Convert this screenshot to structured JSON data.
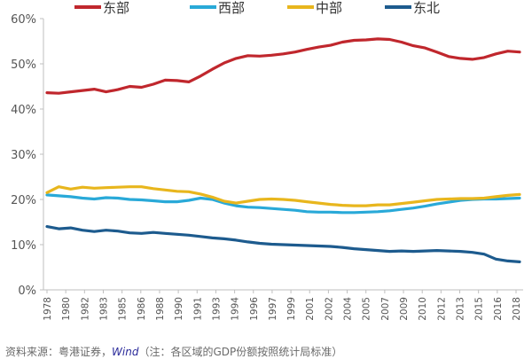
{
  "chart_data": {
    "type": "line",
    "title": "",
    "xlabel": "",
    "ylabel": "",
    "ylim": [
      0,
      60
    ],
    "yticks": [
      "0%",
      "10%",
      "20%",
      "30%",
      "40%",
      "50%",
      "60%"
    ],
    "ytick_values": [
      0,
      10,
      20,
      30,
      40,
      50,
      60
    ],
    "grid": false,
    "legend": "top",
    "x": [
      "1978",
      "1979",
      "1980",
      "1981",
      "1982",
      "1983",
      "1984",
      "1985",
      "1986",
      "1987",
      "1988",
      "1989",
      "1990",
      "1991",
      "1992",
      "1993",
      "1994",
      "1995",
      "1996",
      "1997",
      "1998",
      "1999",
      "2000",
      "2001",
      "2002",
      "2003",
      "2004",
      "2005",
      "2006",
      "2007",
      "2008",
      "2009",
      "2010",
      "2011",
      "2012",
      "2013",
      "2014",
      "2015",
      "2016",
      "2017",
      "2018"
    ],
    "x_tick_labels": [
      "1978",
      "1980",
      "1982",
      "1983",
      "1985",
      "1986",
      "1988",
      "1990",
      "1991",
      "1993",
      "1994",
      "1996",
      "1997",
      "1999",
      "2001",
      "2002",
      "2004",
      "2005",
      "2007",
      "2009",
      "2010",
      "2012",
      "2013",
      "2015",
      "2016",
      "2018"
    ],
    "series": [
      {
        "name": "东部",
        "color": "#c0272d",
        "values": [
          43.6,
          43.5,
          43.8,
          44.1,
          44.4,
          43.8,
          44.3,
          45.0,
          44.8,
          45.5,
          46.4,
          46.3,
          46.0,
          47.3,
          48.8,
          50.2,
          51.2,
          51.8,
          51.7,
          51.9,
          52.2,
          52.6,
          53.2,
          53.7,
          54.1,
          54.8,
          55.2,
          55.3,
          55.5,
          55.4,
          54.8,
          54.0,
          53.5,
          52.6,
          51.6,
          51.2,
          51.0,
          51.4,
          52.2,
          52.8,
          52.6
        ]
      },
      {
        "name": "西部",
        "color": "#29a9d8",
        "values": [
          21.0,
          20.8,
          20.6,
          20.3,
          20.1,
          20.4,
          20.3,
          20.0,
          19.9,
          19.7,
          19.5,
          19.5,
          19.8,
          20.3,
          20.0,
          19.2,
          18.6,
          18.3,
          18.2,
          18.0,
          17.8,
          17.6,
          17.3,
          17.2,
          17.2,
          17.1,
          17.1,
          17.2,
          17.3,
          17.5,
          17.8,
          18.1,
          18.5,
          19.0,
          19.4,
          19.8,
          20.0,
          20.1,
          20.1,
          20.2,
          20.3
        ]
      },
      {
        "name": "中部",
        "color": "#e8b61d",
        "values": [
          21.5,
          22.8,
          22.3,
          22.7,
          22.5,
          22.6,
          22.7,
          22.8,
          22.8,
          22.4,
          22.1,
          21.8,
          21.7,
          21.2,
          20.5,
          19.6,
          19.2,
          19.6,
          20.0,
          20.1,
          20.0,
          19.8,
          19.5,
          19.2,
          18.9,
          18.7,
          18.6,
          18.6,
          18.8,
          18.8,
          19.1,
          19.4,
          19.7,
          20.0,
          20.1,
          20.2,
          20.2,
          20.3,
          20.6,
          20.9,
          21.1
        ]
      },
      {
        "name": "东北",
        "color": "#1d5b8e",
        "values": [
          14.0,
          13.5,
          13.7,
          13.2,
          12.9,
          13.2,
          13.0,
          12.6,
          12.5,
          12.7,
          12.5,
          12.3,
          12.1,
          11.8,
          11.5,
          11.3,
          11.0,
          10.6,
          10.3,
          10.1,
          10.0,
          9.9,
          9.8,
          9.7,
          9.6,
          9.4,
          9.1,
          8.9,
          8.7,
          8.5,
          8.6,
          8.5,
          8.6,
          8.7,
          8.6,
          8.5,
          8.3,
          7.9,
          6.8,
          6.4,
          6.2
        ]
      }
    ]
  },
  "footnote": {
    "prefix": "资料来源：粤港证券，",
    "wind": "Wind",
    "suffix": "（注：各区域的GDP份额按照统计局标准）"
  }
}
